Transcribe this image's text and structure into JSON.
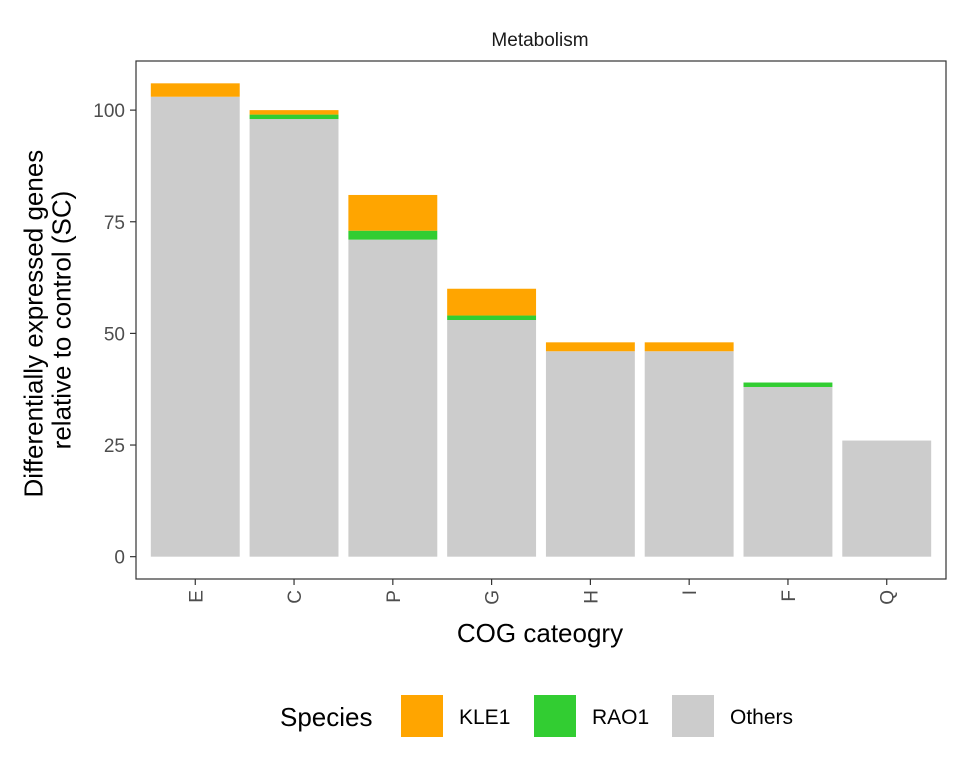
{
  "chart_data": {
    "type": "bar",
    "stacked": true,
    "facet_title": "Metabolism",
    "xlabel": "COG cateogry",
    "ylabel_lines": [
      "Differentially expressed genes",
      "relative to control (SC)"
    ],
    "categories": [
      "E",
      "C",
      "P",
      "G",
      "H",
      "I",
      "F",
      "Q"
    ],
    "y_ticks": [
      0,
      25,
      50,
      75,
      100
    ],
    "ylim": [
      -5,
      111
    ],
    "grid": false,
    "legend": {
      "title": "Species",
      "position": "bottom"
    },
    "series": [
      {
        "name": "Others",
        "color": "#cccccc",
        "values": [
          103,
          98,
          71,
          53,
          46,
          46,
          38,
          26
        ]
      },
      {
        "name": "RAO1",
        "color": "#32cd32",
        "values": [
          0,
          1,
          2,
          1,
          0,
          0,
          1,
          0
        ]
      },
      {
        "name": "KLE1",
        "color": "#ffa500",
        "values": [
          3,
          1,
          8,
          6,
          2,
          2,
          0,
          0
        ]
      }
    ],
    "legend_order": [
      "KLE1",
      "RAO1",
      "Others"
    ]
  }
}
